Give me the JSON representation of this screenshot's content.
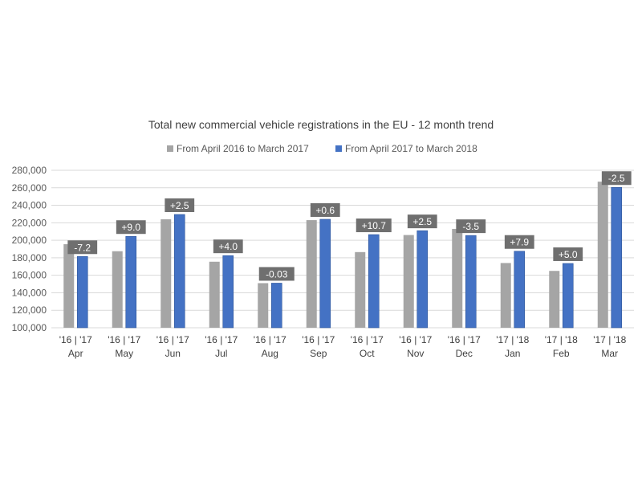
{
  "chart_data": {
    "type": "bar",
    "title": "Total new commercial vehicle registrations in the EU - 12 month trend",
    "legend_position": "top-center",
    "grid": true,
    "ylim": [
      100000,
      280000
    ],
    "y_ticks": [
      100000,
      120000,
      140000,
      160000,
      180000,
      200000,
      220000,
      240000,
      260000,
      280000
    ],
    "y_tick_labels": [
      "100,000",
      "120,000",
      "140,000",
      "160,000",
      "180,000",
      "200,000",
      "220,000",
      "240,000",
      "260,000",
      "280,000"
    ],
    "categories": [
      "Apr",
      "May",
      "Jun",
      "Jul",
      "Aug",
      "Sep",
      "Oct",
      "Nov",
      "Dec",
      "Jan",
      "Feb",
      "Mar"
    ],
    "year_labels": [
      "'16 | '17",
      "'16 | '17",
      "'16 | '17",
      "'16 | '17",
      "'16 | '17",
      "'16 | '17",
      "'16 | '17",
      "'16 | '17",
      "'16 | '17",
      "'17 | '18",
      "'17 | '18",
      "'17 | '18"
    ],
    "series": [
      {
        "name": "From April 2016 to March 2017",
        "color": "#a5a5a5",
        "values": [
          195500,
          187500,
          224000,
          175500,
          151000,
          223000,
          186500,
          206000,
          213000,
          174000,
          165000,
          267000
        ]
      },
      {
        "name": "From April 2017 to March 2018",
        "color": "#4472c4",
        "values": [
          181500,
          204500,
          229500,
          182500,
          151000,
          224000,
          206500,
          211000,
          205500,
          187500,
          173500,
          260500
        ]
      }
    ],
    "change_labels": [
      "-7.2",
      "+9.0",
      "+2.5",
      "+4.0",
      "-0.03",
      "+0.6",
      "+10.7",
      "+2.5",
      "-3.5",
      "+7.9",
      "+5.0",
      "-2.5"
    ],
    "label_color": "#6f6f6f"
  }
}
